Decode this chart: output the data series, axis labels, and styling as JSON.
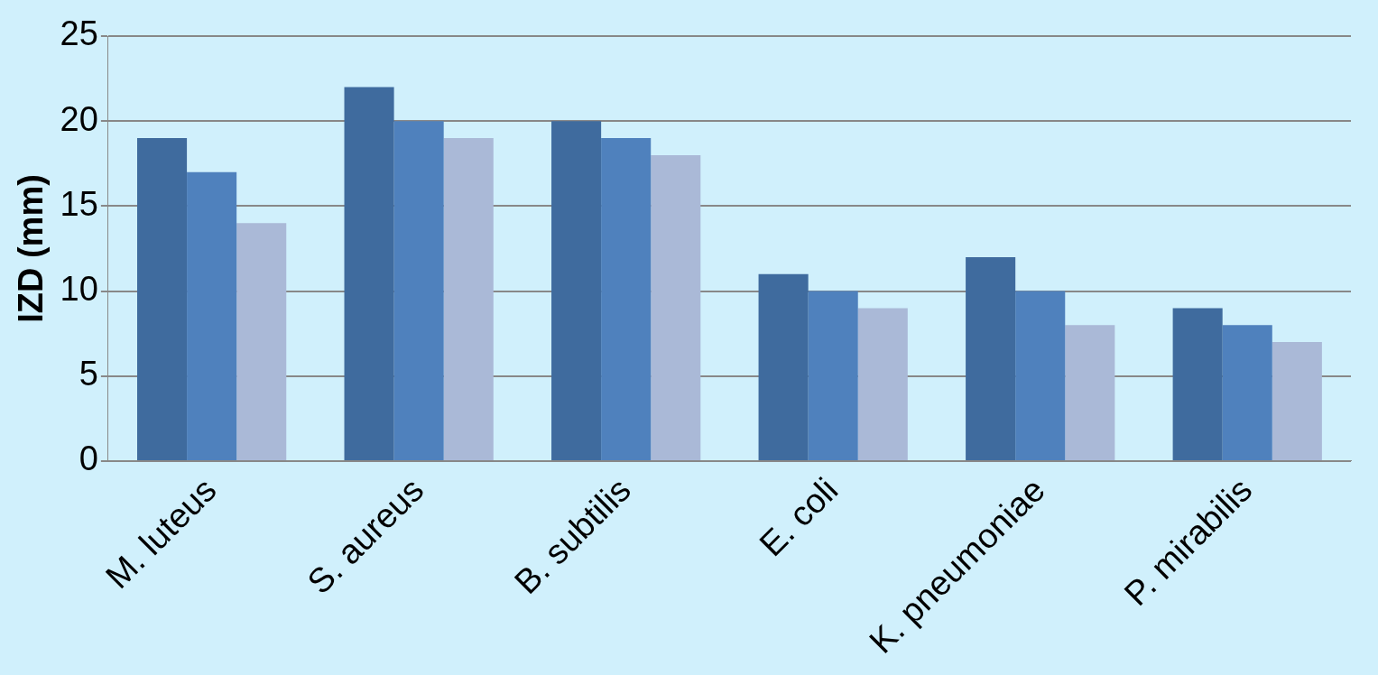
{
  "chart_data": {
    "type": "bar",
    "ylabel": "IZD (mm)",
    "categories": [
      "M. luteus",
      "S. aureus",
      "B. subtilis",
      "E. coli",
      "K. pneumoniae",
      "P. mirabilis"
    ],
    "series": [
      {
        "color": "#3f6b9e",
        "values": [
          19,
          22,
          20,
          11,
          12,
          9
        ]
      },
      {
        "color": "#4f81bd",
        "values": [
          17,
          20,
          19,
          10,
          10,
          8
        ]
      },
      {
        "color": "#aab9d7",
        "values": [
          14,
          19,
          18,
          9,
          8,
          7
        ]
      }
    ],
    "ylim": [
      0,
      25
    ],
    "yticks": [
      0,
      5,
      10,
      15,
      20,
      25
    ],
    "grid": "y",
    "legend": false
  }
}
